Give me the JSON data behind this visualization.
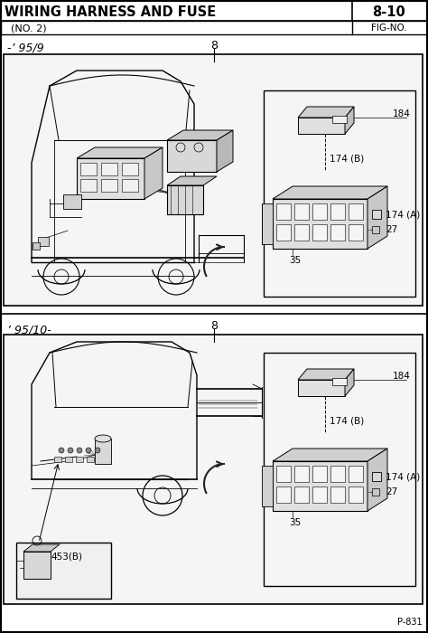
{
  "title": "WIRING HARNESS AND FUSE",
  "subtitle": "(NO. 2)",
  "fig_number": "8-10",
  "fig_label": "FIG-NO.",
  "page_number": "P-831",
  "section1_label": "-’ 95/9",
  "section2_label": "’ 95/10-",
  "part8_1": "8",
  "part8_2": "8",
  "bg_color": "#ffffff",
  "border_color": "#000000",
  "text_color": "#000000",
  "gray_light": "#e8e8e8",
  "gray_mid": "#c8c8c8",
  "gray_dark": "#999999"
}
